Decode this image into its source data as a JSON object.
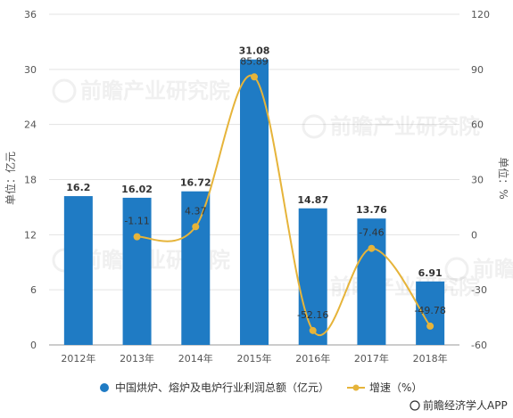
{
  "chart_data": {
    "type": "bar",
    "categories": [
      "2012年",
      "2013年",
      "2014年",
      "2015年",
      "2016年",
      "2017年",
      "2018年"
    ],
    "series": [
      {
        "name": "中国烘炉、熔炉及电炉行业利润总额（亿元）",
        "type": "bar",
        "axis": "left",
        "values": [
          16.2,
          16.02,
          16.72,
          31.08,
          14.87,
          13.76,
          6.91
        ],
        "color": "#1f7bc4"
      },
      {
        "name": "增速（%）",
        "type": "line",
        "axis": "right",
        "values": [
          null,
          -1.11,
          4.37,
          85.89,
          -52.16,
          -7.46,
          -49.78
        ],
        "color": "#e6b43a"
      }
    ],
    "ylabel_left": "单位：亿元",
    "ylabel_right": "单位：%",
    "ylim_left": [
      0,
      36
    ],
    "yticks_left": [
      "0",
      "6",
      "12",
      "18",
      "24",
      "30",
      "36"
    ],
    "ylim_right": [
      -60,
      120
    ],
    "yticks_right": [
      "-60",
      "-30",
      "0",
      "30",
      "60",
      "90",
      "120"
    ],
    "grid": true,
    "legend_position": "bottom"
  },
  "source": "前瞻经济学人APP",
  "watermark": "前瞻产业研究院"
}
